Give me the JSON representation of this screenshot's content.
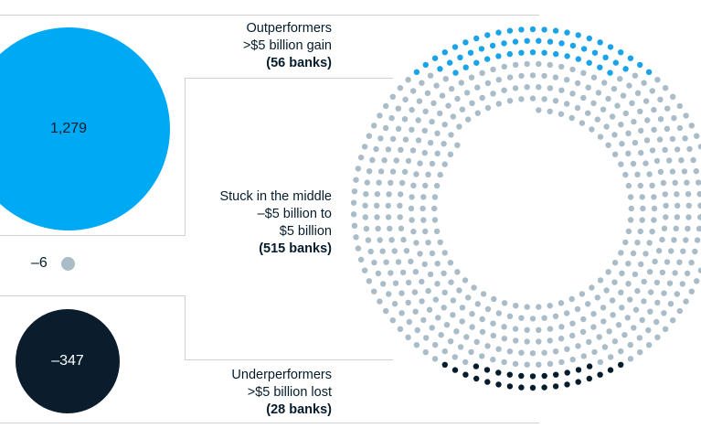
{
  "groups": {
    "outperformers": {
      "title": "Outperformers",
      "range": ">$5 billion gain",
      "count": "(56 banks)",
      "value": "1,279",
      "dots": 56,
      "color": "#1aa3e8"
    },
    "middle": {
      "title": "Stuck in the middle",
      "range_line1": "–$5 billion to",
      "range_line2": "$5 billion",
      "count": "(515 banks)",
      "value": "–6",
      "dots": 515,
      "color": "#a9bcc8"
    },
    "underperformers": {
      "title": "Underperformers",
      "range": ">$5 billion lost",
      "count": "(28 banks)",
      "value": "–347",
      "dots": 28,
      "color": "#051c2c"
    }
  },
  "colors": {
    "outperformers_circle": "#00a9f4",
    "underperformers_circle": "#0b1d2d",
    "middle_dot": "#a9bcc8",
    "rule": "#d0d0d0"
  }
}
